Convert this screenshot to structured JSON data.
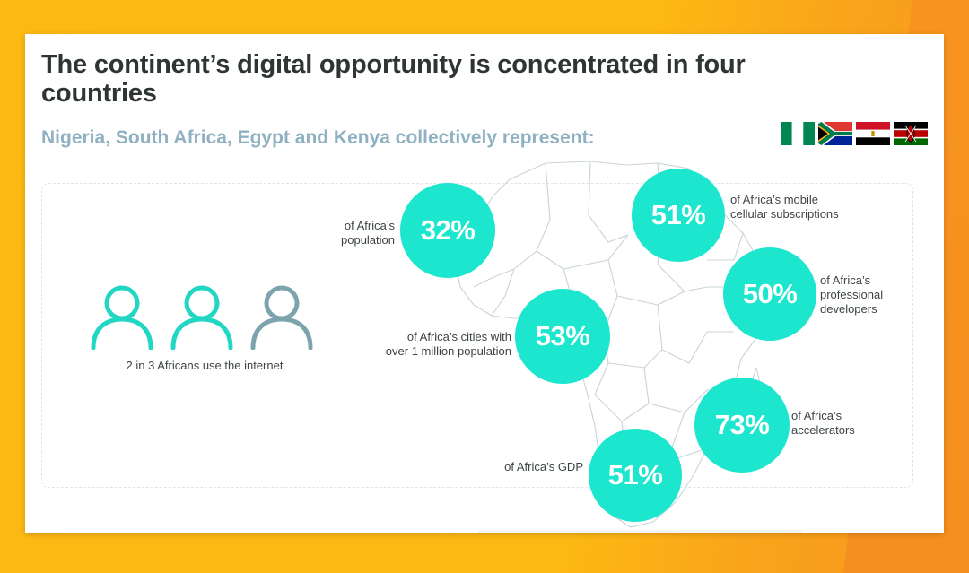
{
  "slide": {
    "title": "The continent’s digital opportunity is concentrated in four countries",
    "subtitle": "Nigeria, South Africa, Egypt and Kenya collectively represent:"
  },
  "flags": [
    {
      "country": "Nigeria",
      "icon": "nigeria-flag-icon"
    },
    {
      "country": "South Africa",
      "icon": "south-africa-flag-icon"
    },
    {
      "country": "Egypt",
      "icon": "egypt-flag-icon"
    },
    {
      "country": "Kenya",
      "icon": "kenya-flag-icon"
    }
  ],
  "internet": {
    "caption": "2 in 3 Africans use the internet",
    "icons": [
      "person-icon",
      "person-icon",
      "person-icon"
    ]
  },
  "stats": [
    {
      "value": "32%",
      "label_lines": [
        "of Africa’s",
        "population"
      ]
    },
    {
      "value": "51%",
      "label_lines": [
        "of Africa’s mobile",
        "cellular subscriptions"
      ]
    },
    {
      "value": "50%",
      "label_lines": [
        "of Africa’s",
        "professional",
        "developers"
      ]
    },
    {
      "value": "53%",
      "label_lines": [
        "of Africa’s cities with",
        "over 1 million population"
      ]
    },
    {
      "value": "73%",
      "label_lines": [
        "of Africa’s",
        "accelerators"
      ]
    },
    {
      "value": "51%",
      "label_lines": [
        "of Africa’s GDP"
      ]
    }
  ],
  "colors": {
    "accent": "#1de6cf",
    "person_active": "#22d6c4",
    "person_inactive": "#7da4ad",
    "subtitle": "#8fb1c1",
    "title": "#2f3435",
    "background": "#fcb813"
  }
}
